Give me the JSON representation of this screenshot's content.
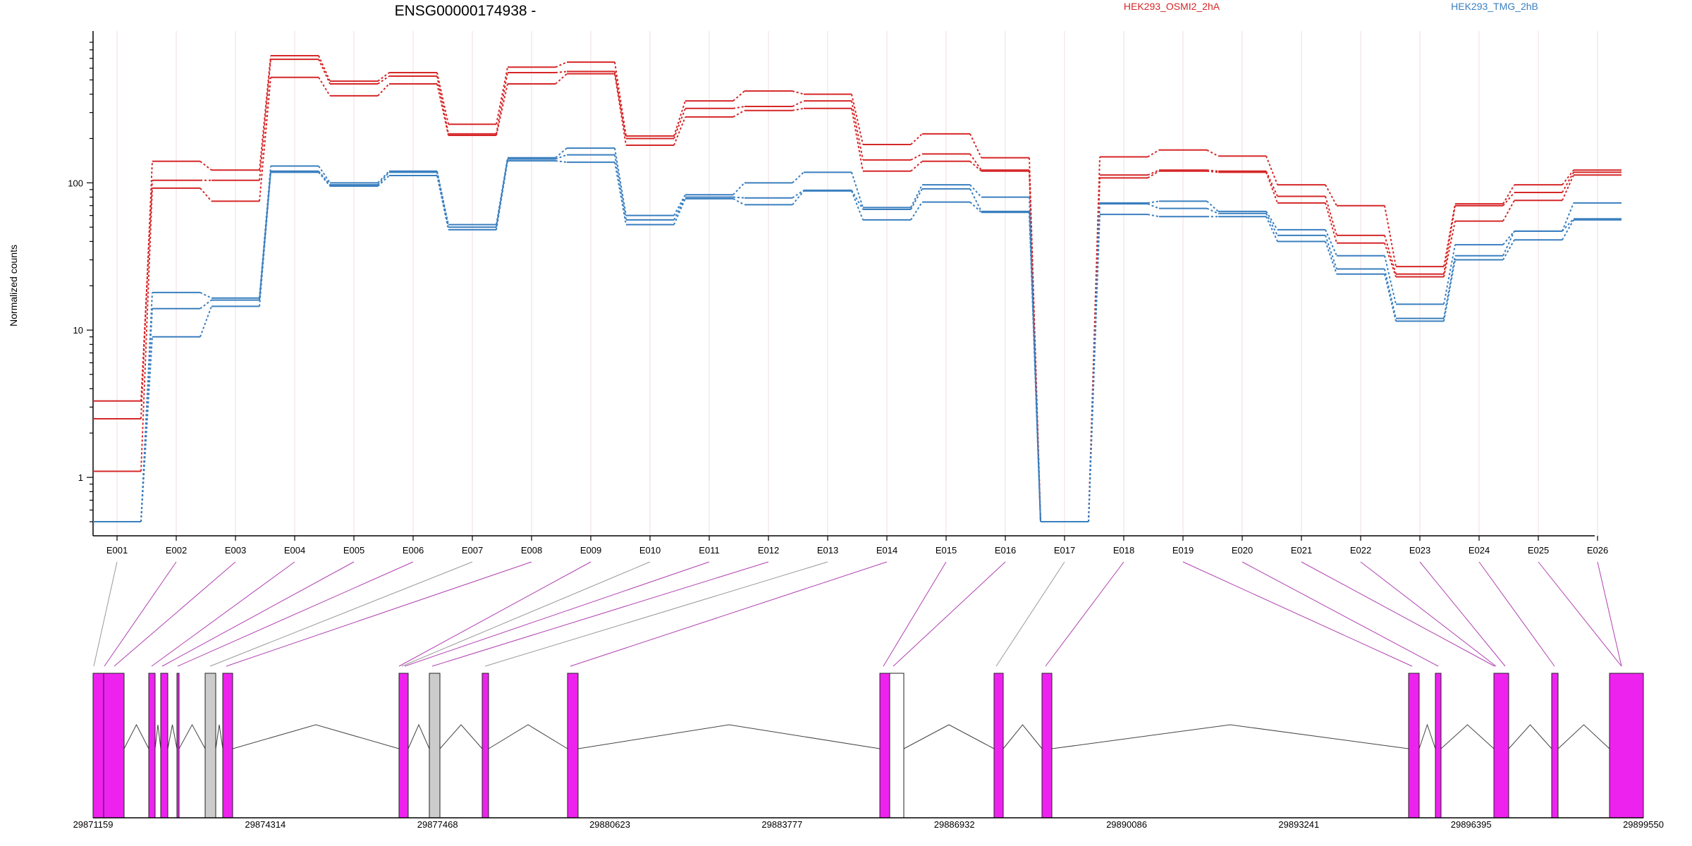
{
  "chart_data": {
    "type": "line",
    "title": "ENSG00000174938 -",
    "ylabel": "Normalized counts",
    "xlabel": "",
    "yscale": "log",
    "ylim": [
      0.5,
      900
    ],
    "yticks": [
      "1",
      "10",
      "100"
    ],
    "ytick_values": [
      1,
      10,
      100
    ],
    "categories": [
      "E001",
      "E002",
      "E003",
      "E004",
      "E005",
      "E006",
      "E007",
      "E008",
      "E009",
      "E010",
      "E011",
      "E012",
      "E013",
      "E014",
      "E015",
      "E016",
      "E017",
      "E018",
      "E019",
      "E020",
      "E021",
      "E022",
      "E023",
      "E024",
      "E025",
      "E026"
    ],
    "legend": [
      {
        "name": "HEK293_OSMI2_2hA",
        "color": "#d62728"
      },
      {
        "name": "HEK293_TMG_2hB",
        "color": "#3a7fbf"
      }
    ],
    "series": [
      {
        "group": 0,
        "values": [
          2.5,
          140,
          122,
          730,
          490,
          560,
          250,
          610,
          660,
          208,
          360,
          420,
          400,
          182,
          215,
          148,
          0.5,
          150,
          167,
          152,
          97,
          70,
          27,
          72,
          97,
          122
        ]
      },
      {
        "group": 0,
        "values": [
          3.3,
          104,
          104,
          690,
          470,
          530,
          215,
          560,
          570,
          200,
          320,
          330,
          360,
          143,
          157,
          122,
          0.5,
          113,
          122,
          120,
          81,
          44,
          24,
          70,
          86,
          118
        ]
      },
      {
        "group": 0,
        "values": [
          1.1,
          92,
          75,
          520,
          390,
          470,
          210,
          470,
          550,
          180,
          280,
          310,
          320,
          120,
          140,
          120,
          0.5,
          108,
          120,
          118,
          73,
          39,
          23,
          55,
          76,
          113
        ]
      },
      {
        "group": 1,
        "values": [
          0.5,
          18,
          16.5,
          130,
          100,
          120,
          52,
          148,
          172,
          60,
          83,
          100,
          118,
          68,
          97,
          80,
          0.5,
          73,
          75,
          64,
          48,
          32,
          15,
          38,
          47,
          73
        ]
      },
      {
        "group": 1,
        "values": [
          0.5,
          14,
          16,
          120,
          97,
          118,
          50,
          145,
          155,
          56,
          80,
          79,
          89,
          66,
          91,
          64,
          0.5,
          72,
          67,
          62,
          44,
          26,
          12,
          32,
          47,
          57
        ]
      },
      {
        "group": 1,
        "values": [
          0.5,
          9,
          14.5,
          118,
          95,
          112,
          48,
          141,
          138,
          52,
          78,
          71,
          88,
          56,
          74,
          63,
          0.5,
          61,
          59,
          59,
          40,
          24,
          11.5,
          30,
          41,
          56
        ]
      }
    ]
  },
  "gene_model": {
    "coordinates": [
      "29871159",
      "29874314",
      "29877468",
      "29880623",
      "29883777",
      "29886932",
      "29890086",
      "29893241",
      "29896395",
      "29899550"
    ],
    "exon_color": "#ee22ee",
    "excluded_color": "#cccccc",
    "connector_color": "#b040b0"
  }
}
